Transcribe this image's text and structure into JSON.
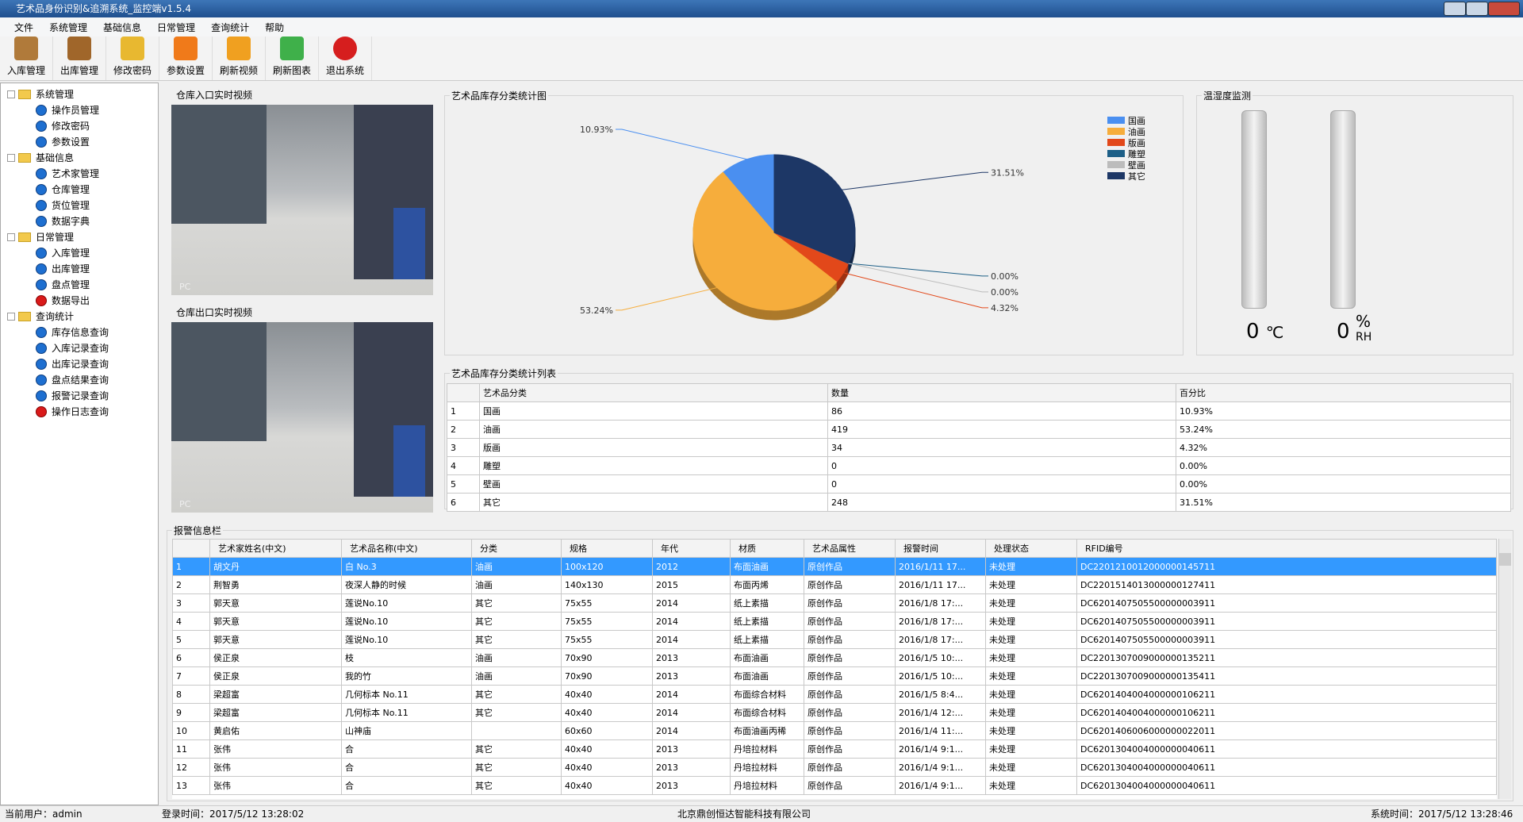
{
  "window": {
    "title": "艺术品身份识别&追溯系统_监控端v1.5.4"
  },
  "menu": [
    "文件",
    "系统管理",
    "基础信息",
    "日常管理",
    "查询统计",
    "帮助"
  ],
  "toolbar": [
    "入库管理",
    "出库管理",
    "修改密码",
    "参数设置",
    "刷新视频",
    "刷新图表",
    "退出系统"
  ],
  "tree": [
    {
      "label": "系统管理",
      "children": [
        "操作员管理",
        "修改密码",
        "参数设置"
      ]
    },
    {
      "label": "基础信息",
      "children": [
        "艺术家管理",
        "仓库管理",
        "货位管理",
        "数据字典"
      ]
    },
    {
      "label": "日常管理",
      "children": [
        "入库管理",
        "出库管理",
        "盘点管理",
        "数据导出"
      ]
    },
    {
      "label": "查询统计",
      "children": [
        "库存信息查询",
        "入库记录查询",
        "出库记录查询",
        "盘点结果查询",
        "报警记录查询",
        "操作日志查询"
      ]
    }
  ],
  "video_panels": [
    {
      "title": "仓库入口实时视频",
      "overlay": "PC"
    },
    {
      "title": "仓库出口实时视频",
      "overlay": "PC"
    }
  ],
  "chart_data": {
    "type": "pie",
    "title": "艺术品库存分类统计图",
    "categories": [
      "国画",
      "油画",
      "版画",
      "雕塑",
      "壁画",
      "其它"
    ],
    "values": [
      10.93,
      53.24,
      4.32,
      0.0,
      0.0,
      31.51
    ],
    "value_labels": [
      "10.93%",
      "53.24%",
      "4.32%",
      "0.00%",
      "0.00%",
      "31.51%"
    ],
    "colors": [
      "#4a8ff0",
      "#f6ad3c",
      "#e2481a",
      "#1d5f87",
      "#bcbcbc",
      "#1d3766"
    ],
    "legend": "top-right"
  },
  "monitor": {
    "title": "温湿度监测",
    "temperature": {
      "value": "0",
      "unit": "℃"
    },
    "humidity": {
      "value": "0",
      "unit": "%",
      "subunit": "RH"
    }
  },
  "stats_table": {
    "title": "艺术品库存分类统计列表",
    "columns": [
      "艺术品分类",
      "数量",
      "百分比"
    ],
    "rows": [
      [
        "1",
        "国画",
        "86",
        "10.93%"
      ],
      [
        "2",
        "油画",
        "419",
        "53.24%"
      ],
      [
        "3",
        "版画",
        "34",
        "4.32%"
      ],
      [
        "4",
        "雕塑",
        "0",
        "0.00%"
      ],
      [
        "5",
        "壁画",
        "0",
        "0.00%"
      ],
      [
        "6",
        "其它",
        "248",
        "31.51%"
      ]
    ]
  },
  "alarms": {
    "title": "报警信息栏",
    "columns": [
      "艺术家姓名(中文)",
      "艺术品名称(中文)",
      "分类",
      "规格",
      "年代",
      "材质",
      "艺术品属性",
      "报警时间",
      "处理状态",
      "RFID编号"
    ],
    "rows": [
      [
        "1",
        "胡文丹",
        "白 No.3",
        "油画",
        "100x120",
        "2012",
        "布面油画",
        "原创作品",
        "2016/1/11 17...",
        "未处理",
        "DC2201210012000000145711"
      ],
      [
        "2",
        "荆智勇",
        "夜深人静的时候",
        "油画",
        "140x130",
        "2015",
        "布面丙烯",
        "原创作品",
        "2016/1/11 17...",
        "未处理",
        "DC2201514013000000127411"
      ],
      [
        "3",
        "郭天意",
        "莲说No.10",
        "其它",
        "75x55",
        "2014",
        "纸上素描",
        "原创作品",
        "2016/1/8 17:...",
        "未处理",
        "DC6201407505500000003911"
      ],
      [
        "4",
        "郭天意",
        "莲说No.10",
        "其它",
        "75x55",
        "2014",
        "纸上素描",
        "原创作品",
        "2016/1/8 17:...",
        "未处理",
        "DC6201407505500000003911"
      ],
      [
        "5",
        "郭天意",
        "莲说No.10",
        "其它",
        "75x55",
        "2014",
        "纸上素描",
        "原创作品",
        "2016/1/8 17:...",
        "未处理",
        "DC6201407505500000003911"
      ],
      [
        "6",
        "侯正泉",
        "枝",
        "油画",
        "70x90",
        "2013",
        "布面油画",
        "原创作品",
        "2016/1/5 10:...",
        "未处理",
        "DC2201307009000000135211"
      ],
      [
        "7",
        "侯正泉",
        "我的竹",
        "油画",
        "70x90",
        "2013",
        "布面油画",
        "原创作品",
        "2016/1/5 10:...",
        "未处理",
        "DC2201307009000000135411"
      ],
      [
        "8",
        "梁超富",
        "几何标本 No.11",
        "其它",
        "40x40",
        "2014",
        "布面综合材料",
        "原创作品",
        "2016/1/5 8:4...",
        "未处理",
        "DC6201404004000000106211"
      ],
      [
        "9",
        "梁超富",
        "几何标本 No.11",
        "其它",
        "40x40",
        "2014",
        "布面综合材料",
        "原创作品",
        "2016/1/4 12:...",
        "未处理",
        "DC6201404004000000106211"
      ],
      [
        "10",
        "黄启佑",
        "山神庙",
        null,
        "60x60",
        "2014",
        "布面油画丙稀",
        "原创作品",
        "2016/1/4 11:...",
        "未处理",
        "DC6201406006000000022011"
      ],
      [
        "11",
        "张伟",
        "合",
        "其它",
        "40x40",
        "2013",
        "丹培拉材料",
        "原创作品",
        "2016/1/4 9:1...",
        "未处理",
        "DC6201304004000000040611"
      ],
      [
        "12",
        "张伟",
        "合",
        "其它",
        "40x40",
        "2013",
        "丹培拉材料",
        "原创作品",
        "2016/1/4 9:1...",
        "未处理",
        "DC6201304004000000040611"
      ],
      [
        "13",
        "张伟",
        "合",
        "其它",
        "40x40",
        "2013",
        "丹培拉材料",
        "原创作品",
        "2016/1/4 9:1...",
        "未处理",
        "DC6201304004000000040611"
      ]
    ]
  },
  "status_bar": {
    "user": "当前用户：admin",
    "login": "登录时间：2017/5/12 13:28:02",
    "company": "北京鼎创恒达智能科技有限公司",
    "system_time": "系统时间：2017/5/12 13:28:46"
  }
}
